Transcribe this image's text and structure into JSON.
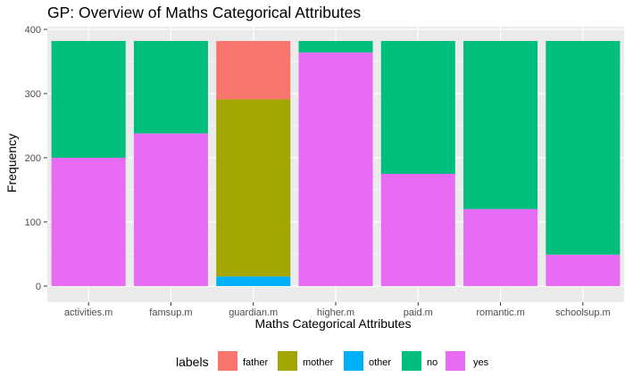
{
  "chart_data": {
    "type": "bar",
    "stacked": true,
    "title": "GP: Overview of Maths Categorical Attributes",
    "xlabel": "Maths Categorical Attributes",
    "ylabel": "Frequency",
    "ylim": [
      0,
      400
    ],
    "yticks": [
      0,
      100,
      200,
      300,
      400
    ],
    "grid": true,
    "legend_position": "bottom",
    "legend_title": "labels",
    "categories": [
      "activities.m",
      "famsup.m",
      "guardian.m",
      "higher.m",
      "paid.m",
      "romantic.m",
      "schoolsup.m"
    ],
    "series": [
      {
        "name": "father",
        "color": "#F8766D",
        "values": [
          0,
          0,
          91,
          0,
          0,
          0,
          0
        ]
      },
      {
        "name": "mother",
        "color": "#A3A500",
        "values": [
          0,
          0,
          276,
          0,
          0,
          0,
          0
        ]
      },
      {
        "name": "other",
        "color": "#00B0F6",
        "values": [
          0,
          0,
          15,
          0,
          0,
          0,
          0
        ]
      },
      {
        "name": "no",
        "color": "#00BF7D",
        "values": [
          182,
          144,
          0,
          18,
          207,
          262,
          333
        ]
      },
      {
        "name": "yes",
        "color": "#E76BF3",
        "values": [
          200,
          238,
          0,
          364,
          175,
          120,
          49
        ]
      }
    ]
  }
}
